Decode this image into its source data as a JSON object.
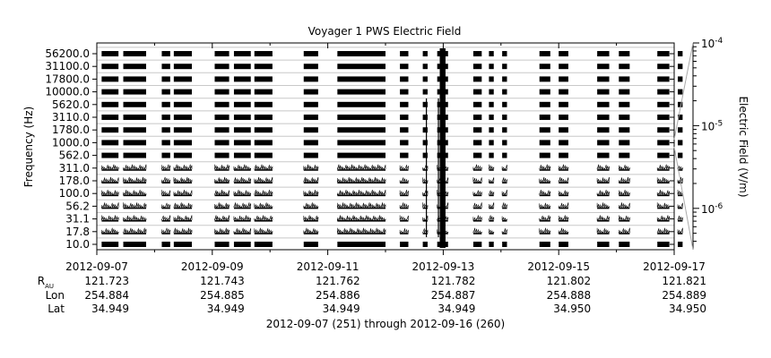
{
  "chart_data": {
    "type": "heatmap",
    "title": "Voyager 1 PWS Electric Field",
    "ylabel": "Frequency (Hz)",
    "colorbar_label": "Electric Field (V/m)",
    "colorbar_scale": "log",
    "colorbar_range": [
      "1e-6.5",
      "1e-4"
    ],
    "colorbar_ticks": [
      {
        "base": "10",
        "exp": "-4",
        "value": 0.0001
      },
      {
        "base": "10",
        "exp": "-5",
        "value": 1e-05
      },
      {
        "base": "10",
        "exp": "-6",
        "value": 1e-06
      }
    ],
    "frequency_channels": [
      "10.0",
      "17.8",
      "31.1",
      "56.2",
      "100.0",
      "178.0",
      "311.0",
      "562.0",
      "1000.0",
      "1780.0",
      "3110.0",
      "5620.0",
      "10000.0",
      "17800.0",
      "31100.0",
      "56200.0"
    ],
    "frequency_tick_labels": [
      "10.0",
      "17.8",
      "31.1",
      "56.2",
      "100.0",
      "178.0",
      "311.0",
      "562.0",
      "1000.0",
      "1780.0",
      "3110.0",
      "5620.0",
      "10000.0",
      "17800.0",
      "31100.0",
      "56200.0"
    ],
    "x_range_days": [
      "2012-09-07",
      "2012-09-17"
    ],
    "x_ticks": [
      "2012-09-07",
      "2012-09-09",
      "2012-09-11",
      "2012-09-13",
      "2012-09-15",
      "2012-09-17"
    ],
    "x_minor_ticks": [
      "2012-09-08",
      "2012-09-10",
      "2012-09-12",
      "2012-09-14",
      "2012-09-16"
    ],
    "data_segments": [
      {
        "start": "2012-09-07 02:00",
        "end": "2012-09-07 09:00"
      },
      {
        "start": "2012-09-07 11:00",
        "end": "2012-09-07 20:30"
      },
      {
        "start": "2012-09-08 03:00",
        "end": "2012-09-08 06:30"
      },
      {
        "start": "2012-09-08 08:00",
        "end": "2012-09-08 15:30"
      },
      {
        "start": "2012-09-09 01:00",
        "end": "2012-09-09 07:00"
      },
      {
        "start": "2012-09-09 09:00",
        "end": "2012-09-09 16:00"
      },
      {
        "start": "2012-09-09 17:30",
        "end": "2012-09-10 01:00"
      },
      {
        "start": "2012-09-10 14:00",
        "end": "2012-09-10 20:00"
      },
      {
        "start": "2012-09-11 04:00",
        "end": "2012-09-12 00:00"
      },
      {
        "start": "2012-09-12 06:00",
        "end": "2012-09-12 09:30"
      },
      {
        "start": "2012-09-12 15:30",
        "end": "2012-09-12 17:30"
      },
      {
        "start": "2012-09-12 21:30",
        "end": "2012-09-13 02:00"
      },
      {
        "start": "2012-09-13 12:30",
        "end": "2012-09-13 16:00"
      },
      {
        "start": "2012-09-13 19:00",
        "end": "2012-09-13 21:00"
      },
      {
        "start": "2012-09-14 00:30",
        "end": "2012-09-14 02:30"
      },
      {
        "start": "2012-09-14 16:00",
        "end": "2012-09-14 20:30"
      },
      {
        "start": "2012-09-15 00:00",
        "end": "2012-09-15 04:00"
      },
      {
        "start": "2012-09-15 16:00",
        "end": "2012-09-15 21:00"
      },
      {
        "start": "2012-09-16 01:00",
        "end": "2012-09-16 05:30"
      },
      {
        "start": "2012-09-16 17:00",
        "end": "2012-09-16 22:00"
      },
      {
        "start": "2012-09-17 01:30",
        "end": "2012-09-17 03:30"
      }
    ],
    "burst_lines": [
      "2012-09-12 23:00",
      "2012-09-12 23:45",
      "2012-09-13 00:30",
      "2012-09-12 17:00",
      "2012-09-12 22:00"
    ],
    "grid": true,
    "ephemeris": {
      "rows": [
        {
          "label": "R",
          "subscript": "AU",
          "values": [
            "121.723",
            "121.743",
            "121.762",
            "121.782",
            "121.802",
            "121.821"
          ]
        },
        {
          "label": "Lon",
          "subscript": "",
          "values": [
            "254.884",
            "254.885",
            "254.886",
            "254.887",
            "254.888",
            "254.889"
          ]
        },
        {
          "label": "Lat",
          "subscript": "",
          "values": [
            "34.949",
            "34.949",
            "34.949",
            "34.949",
            "34.950",
            "34.950"
          ]
        }
      ]
    },
    "footer": "2012-09-07 (251) through 2012-09-16 (260)"
  }
}
